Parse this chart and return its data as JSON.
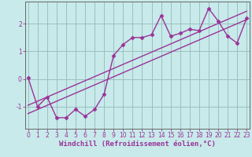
{
  "title": "",
  "xlabel": "Windchill (Refroidissement éolien,°C)",
  "x_data": [
    0,
    1,
    2,
    3,
    4,
    5,
    6,
    7,
    8,
    9,
    10,
    11,
    12,
    13,
    14,
    15,
    16,
    17,
    18,
    19,
    20,
    21,
    22,
    23
  ],
  "y_data": [
    0.05,
    -1.0,
    -0.65,
    -1.4,
    -1.4,
    -1.1,
    -1.35,
    -1.1,
    -0.55,
    0.85,
    1.25,
    1.5,
    1.5,
    1.6,
    2.3,
    1.55,
    1.65,
    1.8,
    1.75,
    2.55,
    2.1,
    1.55,
    1.3,
    2.2
  ],
  "line_color": "#993399",
  "bg_color": "#c8eaea",
  "grid_color": "#9bbfbf",
  "axis_color": "#666666",
  "ylim": [
    -1.8,
    2.8
  ],
  "xlim": [
    -0.3,
    23.3
  ],
  "yticks": [
    -1,
    0,
    1,
    2
  ],
  "xticks": [
    0,
    1,
    2,
    3,
    4,
    5,
    6,
    7,
    8,
    9,
    10,
    11,
    12,
    13,
    14,
    15,
    16,
    17,
    18,
    19,
    20,
    21,
    22,
    23
  ],
  "reg_line1_x": [
    0,
    23
  ],
  "reg_line1_y": [
    -1.25,
    2.15
  ],
  "reg_line2_x": [
    0,
    23
  ],
  "reg_line2_y": [
    -0.95,
    2.45
  ],
  "marker": "D",
  "markersize": 2.5,
  "linewidth": 1.0,
  "tick_fontsize": 5.5,
  "label_fontsize": 6.5
}
